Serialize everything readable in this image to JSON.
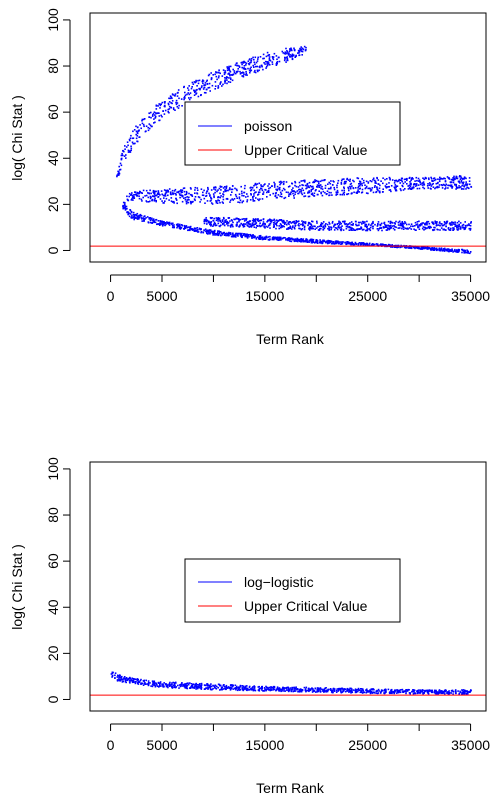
{
  "colors": {
    "series": "#0000ff",
    "critical": "#ff0000",
    "axis": "#000000"
  },
  "chart_data": [
    {
      "type": "scatter",
      "xlabel": "Term Rank",
      "ylabel": "log( Chi Stat )",
      "xlim": [
        -2000,
        36500
      ],
      "ylim": [
        -5,
        103
      ],
      "xticks": [
        0,
        5000,
        15000,
        25000,
        35000
      ],
      "yticks": [
        0,
        20,
        40,
        60,
        80,
        100
      ],
      "legend": {
        "placement": "center",
        "entries": [
          "poisson",
          "Upper Critical Value"
        ]
      },
      "critical_value": 1.9,
      "series": [
        {
          "name": "poisson",
          "bands": [
            {
              "label": "upper",
              "x": [
                500,
                1000,
                2000,
                3000,
                5000,
                8000,
                10000,
                13000,
                15000,
                17000,
                19000
              ],
              "y_low": [
                30,
                36,
                44,
                50,
                58,
                66,
                70,
                76,
                79,
                82,
                86
              ],
              "y_high": [
                34,
                43,
                52,
                58,
                66,
                74,
                78,
                83,
                86,
                88,
                89
              ]
            },
            {
              "label": "middle",
              "x": [
                1500,
                5000,
                10000,
                15000,
                20000,
                25000,
                30000,
                35000
              ],
              "y_low": [
                22,
                21,
                20,
                22,
                24,
                25,
                27,
                27
              ],
              "y_high": [
                26,
                27,
                28,
                30,
                31,
                32,
                32,
                33
              ]
            },
            {
              "label": "lower-middle",
              "x": [
                9000,
                15000,
                20000,
                25000,
                30000,
                35000
              ],
              "y_low": [
                11,
                10,
                9,
                9,
                9,
                9
              ],
              "y_high": [
                15,
                14,
                13,
                13,
                13,
                13
              ]
            },
            {
              "label": "lower",
              "x": [
                1000,
                2000,
                5000,
                10000,
                15000,
                20000,
                25000,
                30000,
                35000
              ],
              "y_low": [
                19,
                14,
                11,
                7,
                5,
                3.5,
                2.5,
                1,
                -1
              ],
              "y_high": [
                23,
                17,
                13,
                9,
                6.5,
                5,
                3.5,
                2,
                0.5
              ]
            }
          ]
        }
      ]
    },
    {
      "type": "scatter",
      "xlabel": "Term Rank",
      "ylabel": "log( Chi Stat )",
      "xlim": [
        -2000,
        36500
      ],
      "ylim": [
        -5,
        103
      ],
      "xticks": [
        0,
        5000,
        15000,
        25000,
        35000
      ],
      "yticks": [
        0,
        20,
        40,
        60,
        80,
        100
      ],
      "legend": {
        "placement": "center",
        "entries": [
          "log−logistic",
          "Upper Critical Value"
        ]
      },
      "critical_value": 1.9,
      "series": [
        {
          "name": "log−logistic",
          "bands": [
            {
              "label": "main",
              "x": [
                0,
                1000,
                3000,
                5000,
                10000,
                15000,
                20000,
                25000,
                30000,
                35000
              ],
              "y_low": [
                9,
                8,
                6.5,
                5.5,
                4.5,
                4,
                3.5,
                3,
                2.8,
                2.5
              ],
              "y_high": [
                13,
                10.5,
                9,
                8,
                7,
                6,
                5.5,
                5,
                4.5,
                4.5
              ]
            }
          ]
        }
      ]
    }
  ]
}
